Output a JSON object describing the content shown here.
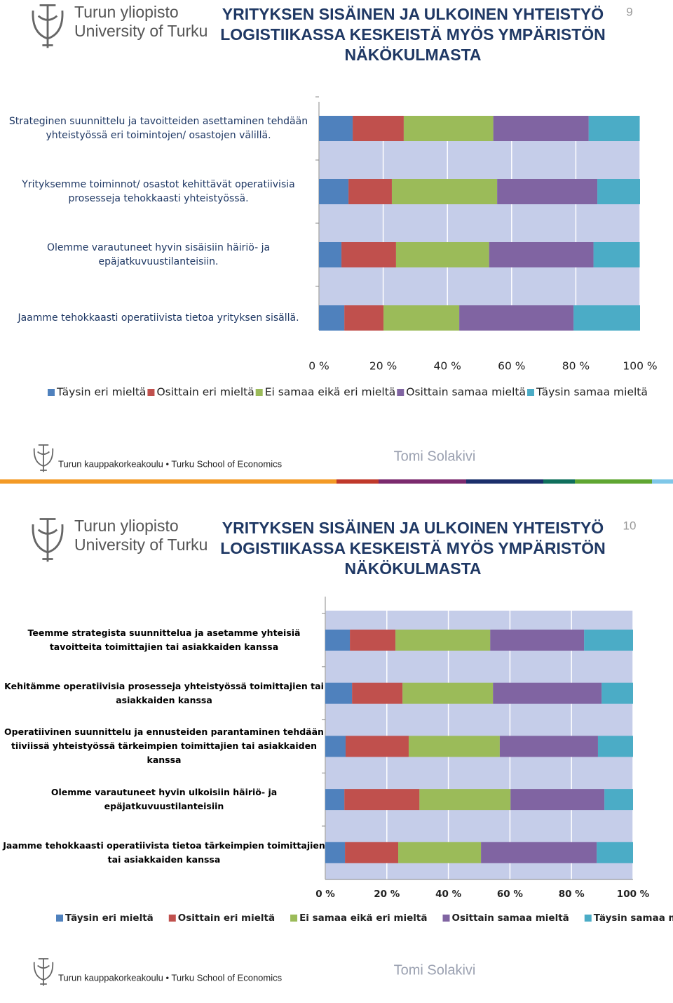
{
  "slides": [
    {
      "logo": [
        "Turun yliopisto",
        "University of Turku"
      ],
      "title": [
        "YRITYKSEN SISÄINEN JA ULKOINEN YHTEISTYÖ",
        "LOGISTIIKASSA KESKEISTÄ MYÖS YMPÄRISTÖN",
        "NÄKÖKULMASTA"
      ],
      "page": "9",
      "footer": "Turun kauppakorkeakoulu • Turku School of Economics",
      "author": "Tomi Solakivi"
    },
    {
      "logo": [
        "Turun yliopisto",
        "University of Turku"
      ],
      "title": [
        "YRITYKSEN SISÄINEN JA ULKOINEN YHTEISTYÖ",
        "LOGISTIIKASSA KESKEISTÄ MYÖS YMPÄRISTÖN",
        "NÄKÖKULMASTA"
      ],
      "page": "10",
      "footer": "Turun kauppakorkeakoulu • Turku School of Economics",
      "author": "Tomi Solakivi"
    }
  ],
  "chart_data": [
    {
      "type": "stacked-bar-horizontal",
      "categories": [
        "Strateginen suunnittelu ja tavoitteiden asettaminen tehdään yhteistyössä eri toimintojen/ osastojen välillä.",
        "Yrityksemme toiminnot/ osastot kehittävät operatiivisia prosesseja tehokkaasti yhteistyössä.",
        "Olemme varautuneet hyvin sisäisiin häiriö- ja epäjatkuvuustilanteisiin.",
        "Jaamme tehokkaasti operatiivista tietoa yrityksen sisällä."
      ],
      "series": [
        {
          "name": "Täysin eri mieltä",
          "color": "#4f81bd",
          "values": [
            10.5,
            9.2,
            7.0,
            7.9
          ]
        },
        {
          "name": "Osittain eri mieltä",
          "color": "#c0504d",
          "values": [
            15.9,
            13.5,
            17.0,
            12.2
          ]
        },
        {
          "name": "Ei samaa eikä eri mieltä",
          "color": "#9bbb59",
          "values": [
            27.9,
            32.8,
            29.0,
            23.6
          ]
        },
        {
          "name": "Osittain samaa mieltä",
          "color": "#8064a2",
          "values": [
            29.7,
            31.2,
            32.5,
            35.6
          ]
        },
        {
          "name": "Täysin samaa mieltä",
          "color": "#4bacc6",
          "values": [
            15.9,
            13.3,
            14.4,
            20.7
          ]
        }
      ],
      "xlim": [
        0,
        100
      ],
      "xticks": [
        {
          "value": 0,
          "label": "0 %"
        },
        {
          "value": 20,
          "label": "20 %"
        },
        {
          "value": 40,
          "label": "40 %"
        },
        {
          "value": 60,
          "label": "60 %"
        },
        {
          "value": 80,
          "label": "80 %"
        },
        {
          "value": 100,
          "label": "100 %"
        }
      ],
      "grid": true,
      "legend": "bottom"
    },
    {
      "type": "stacked-bar-horizontal",
      "categories": [
        "Teemme strategista suunnittelua ja asetamme yhteisiä tavoitteita toimittajien tai asiakkaiden kanssa",
        "Kehitämme operatiivisia prosesseja yhteistyössä toimittajien tai asiakkaiden kanssa",
        "Operatiivinen suunnittelu ja ennusteiden parantaminen tehdään tiiviissä yhteistyössä tärkeimpien toimittajien tai asiakkaiden kanssa",
        "Olemme varautuneet hyvin ulkoisiin häiriö- ja epäjatkuvuustilanteisiin",
        "Jaamme tehokkaasti operatiivista tietoa tärkeimpien toimittajien tai asiakkaiden kanssa"
      ],
      "series": [
        {
          "name": "Täysin eri mieltä",
          "color": "#4f81bd",
          "values": [
            8.0,
            8.7,
            6.6,
            6.2,
            6.4
          ]
        },
        {
          "name": "Osittain eri mieltä",
          "color": "#c0504d",
          "values": [
            14.8,
            16.4,
            20.5,
            24.4,
            17.3
          ]
        },
        {
          "name": "Ei samaa eikä eri mieltä",
          "color": "#9bbb59",
          "values": [
            30.8,
            29.4,
            29.6,
            29.6,
            26.9
          ]
        },
        {
          "name": "Osittain samaa mieltä",
          "color": "#8064a2",
          "values": [
            30.5,
            35.3,
            31.9,
            30.5,
            37.6
          ]
        },
        {
          "name": "Täysin samaa mieltä",
          "color": "#4bacc6",
          "values": [
            15.9,
            10.2,
            11.4,
            9.3,
            11.8
          ]
        }
      ],
      "xlim": [
        0,
        100
      ],
      "xticks": [
        {
          "value": 0,
          "label": "0 %"
        },
        {
          "value": 20,
          "label": "20 %"
        },
        {
          "value": 40,
          "label": "40 %"
        },
        {
          "value": 60,
          "label": "60 %"
        },
        {
          "value": 80,
          "label": "80 %"
        },
        {
          "value": 100,
          "label": "100 %"
        }
      ],
      "grid": true,
      "legend": "bottom"
    }
  ]
}
